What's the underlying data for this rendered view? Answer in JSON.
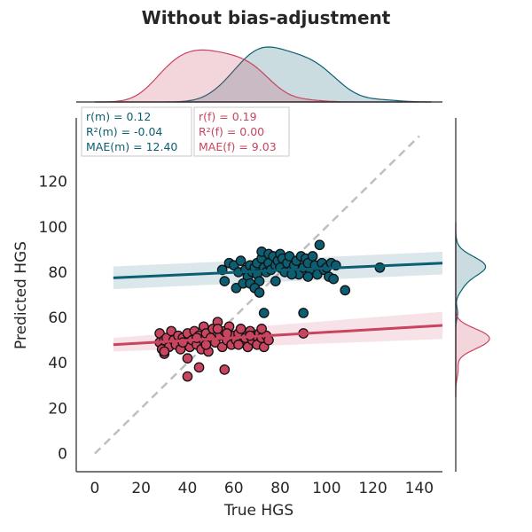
{
  "chart_data": {
    "type": "scatter",
    "title": "Without bias-adjustment",
    "xlabel": "True HGS",
    "ylabel": "Predicted HGS",
    "xlim": [
      -8,
      150
    ],
    "ylim": [
      -8,
      148
    ],
    "xticks": [
      0,
      20,
      40,
      60,
      80,
      100,
      120,
      140
    ],
    "yticks": [
      0,
      20,
      40,
      60,
      80,
      100,
      120
    ],
    "grid": false,
    "identity_line": {
      "from": [
        0,
        0
      ],
      "to": [
        140,
        140
      ],
      "color": "#bfbfbf",
      "style": "dashed"
    },
    "series": [
      {
        "key": "m",
        "color": "#0c5e73",
        "regression": {
          "x0": 8,
          "y0": 77.5,
          "x1": 150,
          "y1": 84,
          "ci_start": 5,
          "ci_end": 5
        },
        "stats": [
          "r(m) = 0.12",
          "R²(m) = -0.04",
          "MAE(m) = 12.40"
        ],
        "points": [
          [
            55,
            81
          ],
          [
            58,
            84
          ],
          [
            60,
            83
          ],
          [
            62,
            80
          ],
          [
            63,
            85
          ],
          [
            65,
            81
          ],
          [
            66,
            78
          ],
          [
            67,
            83
          ],
          [
            68,
            80
          ],
          [
            69,
            82
          ],
          [
            70,
            84
          ],
          [
            70,
            79
          ],
          [
            71,
            76
          ],
          [
            72,
            86
          ],
          [
            72,
            89
          ],
          [
            73,
            82
          ],
          [
            74,
            80
          ],
          [
            75,
            84
          ],
          [
            75,
            88
          ],
          [
            76,
            81
          ],
          [
            77,
            87
          ],
          [
            78,
            83
          ],
          [
            79,
            85
          ],
          [
            80,
            82
          ],
          [
            80,
            88
          ],
          [
            81,
            86
          ],
          [
            82,
            80
          ],
          [
            83,
            84
          ],
          [
            84,
            87
          ],
          [
            85,
            81
          ],
          [
            86,
            83
          ],
          [
            87,
            85
          ],
          [
            88,
            79
          ],
          [
            89,
            87
          ],
          [
            90,
            82
          ],
          [
            91,
            86
          ],
          [
            92,
            84
          ],
          [
            93,
            80
          ],
          [
            94,
            87
          ],
          [
            95,
            83
          ],
          [
            96,
            79
          ],
          [
            97,
            92
          ],
          [
            98,
            84
          ],
          [
            99,
            81
          ],
          [
            100,
            82
          ],
          [
            101,
            78
          ],
          [
            102,
            84
          ],
          [
            103,
            77
          ],
          [
            104,
            83
          ],
          [
            56,
            76
          ],
          [
            61,
            73
          ],
          [
            64,
            75
          ],
          [
            67,
            75
          ],
          [
            69,
            73
          ],
          [
            71,
            71
          ],
          [
            73,
            62
          ],
          [
            78,
            76
          ],
          [
            85,
            79
          ],
          [
            90,
            62
          ],
          [
            92,
            78
          ],
          [
            108,
            72
          ],
          [
            123,
            82
          ]
        ]
      },
      {
        "key": "f",
        "color": "#c9445e",
        "regression": {
          "x0": 8,
          "y0": 48,
          "x1": 150,
          "y1": 56.5,
          "ci_start": 3,
          "ci_end": 6
        },
        "stats": [
          "r(f) = 0.19",
          "R²(f) = 0.00",
          "MAE(f) = 9.03"
        ],
        "points": [
          [
            28,
            53
          ],
          [
            28,
            49
          ],
          [
            29,
            46
          ],
          [
            30,
            50
          ],
          [
            30,
            44
          ],
          [
            31,
            51
          ],
          [
            32,
            47
          ],
          [
            33,
            54
          ],
          [
            34,
            50
          ],
          [
            35,
            48
          ],
          [
            36,
            52
          ],
          [
            37,
            46
          ],
          [
            38,
            51
          ],
          [
            39,
            49
          ],
          [
            40,
            53
          ],
          [
            40,
            42
          ],
          [
            41,
            47
          ],
          [
            42,
            50
          ],
          [
            43,
            54
          ],
          [
            44,
            48
          ],
          [
            45,
            52
          ],
          [
            46,
            46
          ],
          [
            47,
            56
          ],
          [
            47,
            50
          ],
          [
            48,
            53
          ],
          [
            49,
            45
          ],
          [
            50,
            51
          ],
          [
            51,
            55
          ],
          [
            52,
            49
          ],
          [
            53,
            58
          ],
          [
            54,
            52
          ],
          [
            55,
            47
          ],
          [
            56,
            54
          ],
          [
            57,
            50
          ],
          [
            58,
            56
          ],
          [
            59,
            48
          ],
          [
            60,
            52
          ],
          [
            61,
            50
          ],
          [
            62,
            53
          ],
          [
            63,
            55
          ],
          [
            64,
            49
          ],
          [
            65,
            51
          ],
          [
            66,
            47
          ],
          [
            67,
            54
          ],
          [
            68,
            50
          ],
          [
            69,
            52
          ],
          [
            70,
            48
          ],
          [
            71,
            53
          ],
          [
            72,
            51
          ],
          [
            73,
            47
          ],
          [
            74,
            52
          ],
          [
            75,
            50
          ],
          [
            30,
            45
          ],
          [
            38,
            49
          ],
          [
            44,
            51
          ],
          [
            48,
            48
          ],
          [
            53,
            55
          ],
          [
            57,
            53
          ],
          [
            62,
            48
          ],
          [
            67,
            52
          ],
          [
            72,
            55
          ],
          [
            40,
            34
          ],
          [
            45,
            38
          ],
          [
            56,
            37
          ],
          [
            90,
            53
          ]
        ]
      }
    ]
  }
}
